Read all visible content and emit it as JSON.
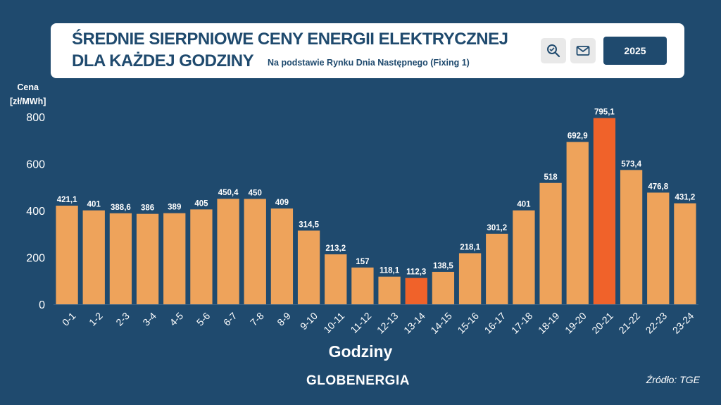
{
  "header": {
    "title_line1": "ŚREDNIE SIERPNIOWE CENY ENERGII ELEKTRYCZNEJ",
    "title_line2": "DLA KAŻDEJ GODZINY",
    "subtitle": "Na podstawie Rynku Dnia Następnego (Fixing 1)",
    "search_icon": "search-icon",
    "mail_icon": "mail-icon",
    "year_label": "2025"
  },
  "colors": {
    "background": "#1f4a6e",
    "bar": "#eea35b",
    "bar_highlight": "#f0622a",
    "text": "#ffffff"
  },
  "footer": {
    "brand": "GLOBENERGIA",
    "source": "Źródło: TGE"
  },
  "chart_data": {
    "type": "bar",
    "ylabel_line1": "Cena",
    "ylabel_line2": "[zł/MWh]",
    "xlabel": "Godziny",
    "ylim": [
      0,
      800
    ],
    "yticks": [
      0,
      200,
      400,
      600,
      800
    ],
    "grid": false,
    "categories": [
      "0-1",
      "1-2",
      "2-3",
      "3-4",
      "4-5",
      "5-6",
      "6-7",
      "7-8",
      "8-9",
      "9-10",
      "10-11",
      "11-12",
      "12-13",
      "13-14",
      "14-15",
      "15-16",
      "16-17",
      "17-18",
      "18-19",
      "19-20",
      "20-21",
      "21-22",
      "22-23",
      "23-24"
    ],
    "values": [
      421.1,
      401,
      388.6,
      386,
      389,
      405,
      450.4,
      450,
      409,
      314.5,
      213.2,
      157,
      118.1,
      112.3,
      138.5,
      218.1,
      301.2,
      401,
      518,
      692.9,
      795.1,
      573.4,
      476.8,
      431.2
    ],
    "value_labels": [
      "421,1",
      "401",
      "388,6",
      "386",
      "389",
      "405",
      "450,4",
      "450",
      "409",
      "314,5",
      "213,2",
      "157",
      "118,1",
      "112,3",
      "138,5",
      "218,1",
      "301,2",
      "401",
      "518",
      "692,9",
      "795,1",
      "573,4",
      "476,8",
      "431,2"
    ],
    "highlight": [
      "13-14",
      "20-21"
    ]
  }
}
